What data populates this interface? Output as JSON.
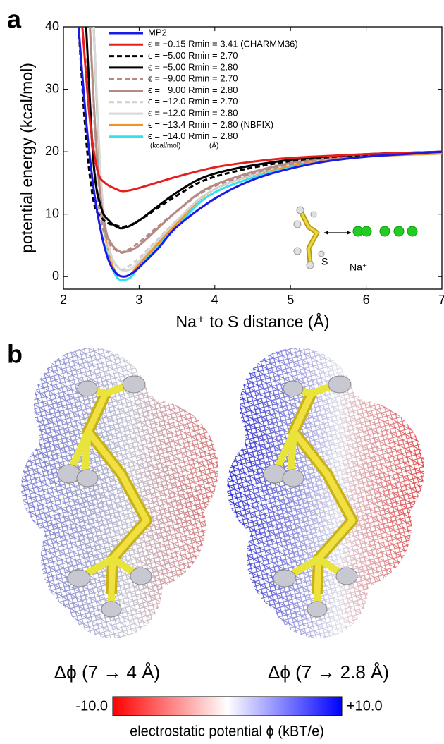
{
  "panel_labels": [
    "a",
    "b"
  ],
  "chart_data": {
    "type": "line",
    "x_label": "Na⁺ to S distance (Å)",
    "y_label": "potential energy (kcal/mol)",
    "xlim": [
      2,
      7
    ],
    "ylim": [
      -2,
      40
    ],
    "xticks": [
      2,
      3,
      4,
      5,
      6,
      7
    ],
    "yticks": [
      0,
      10,
      20,
      30,
      40
    ],
    "legend_units": [
      "(kcal/mol)",
      "(Å)"
    ],
    "annotations": [
      "S",
      "Na⁺"
    ],
    "series": [
      {
        "name": "MP2",
        "color": "#1a1ae6",
        "dashed": false,
        "x": [
          2.2,
          2.3,
          2.4,
          2.5,
          2.6,
          2.7,
          2.8,
          2.9,
          3.0,
          3.25,
          3.5,
          4,
          4.5,
          5,
          5.5,
          6,
          6.5,
          7
        ],
        "values": [
          40,
          25,
          14,
          7,
          2.5,
          0.5,
          0,
          0.5,
          1.5,
          4.5,
          8,
          12.5,
          15.5,
          17.3,
          18.5,
          19.2,
          19.6,
          20
        ]
      },
      {
        "name": "ϵ = −0.15  Rmin = 3.41 (CHARMM36)",
        "color": "#e61e1e",
        "dashed": false,
        "x": [
          2.25,
          2.35,
          2.45,
          2.55,
          2.7,
          2.8,
          3.0,
          3.5,
          4,
          4.5,
          5,
          6,
          7
        ],
        "values": [
          40,
          25,
          17,
          15,
          14,
          13.7,
          14.2,
          16,
          17.5,
          18.4,
          19,
          19.6,
          20
        ]
      },
      {
        "name": "ϵ = −5.00  Rmin = 2.70",
        "color": "#000000",
        "dashed": true,
        "x": [
          2.2,
          2.3,
          2.4,
          2.5,
          2.6,
          2.7,
          2.8,
          3.0,
          3.5,
          4,
          5,
          6,
          7
        ],
        "values": [
          40,
          22,
          12,
          9.5,
          8.5,
          8.2,
          8,
          9,
          13,
          16,
          18.5,
          19.5,
          20
        ]
      },
      {
        "name": "ϵ = −5.00  Rmin = 2.80",
        "color": "#000000",
        "dashed": false,
        "x": [
          2.3,
          2.4,
          2.5,
          2.6,
          2.7,
          2.8,
          3.0,
          3.5,
          4,
          5,
          6,
          7
        ],
        "values": [
          40,
          18,
          11,
          9,
          8,
          7.8,
          9,
          13.5,
          16.5,
          18.7,
          19.6,
          20
        ]
      },
      {
        "name": "ϵ = −9.00  Rmin = 2.70",
        "color": "#b58a85",
        "dashed": true,
        "x": [
          2.3,
          2.4,
          2.5,
          2.6,
          2.7,
          2.8,
          3.0,
          3.5,
          4,
          5,
          6,
          7
        ],
        "values": [
          35,
          18,
          9,
          5.5,
          4.2,
          4,
          5.5,
          10.5,
          14.5,
          18,
          19.3,
          20
        ]
      },
      {
        "name": "ϵ = −9.00  Rmin = 2.80",
        "color": "#b58a85",
        "dashed": false,
        "x": [
          2.35,
          2.45,
          2.55,
          2.65,
          2.75,
          2.8,
          3.0,
          3.5,
          4,
          5,
          6,
          7
        ],
        "values": [
          40,
          18,
          8,
          5,
          4,
          3.9,
          5,
          10.5,
          14.7,
          18.2,
          19.4,
          20
        ]
      },
      {
        "name": "ϵ = −12.0  Rmin = 2.70",
        "color": "#cfcfcf",
        "dashed": true,
        "x": [
          2.35,
          2.45,
          2.55,
          2.65,
          2.75,
          2.8,
          3.0,
          3.5,
          4,
          5,
          6,
          7
        ],
        "values": [
          40,
          15,
          6,
          2.5,
          1.3,
          1.2,
          3,
          9,
          14,
          18,
          19.4,
          20
        ]
      },
      {
        "name": "ϵ = −12.0  Rmin = 2.80",
        "color": "#d8d8d8",
        "dashed": false,
        "x": [
          2.4,
          2.5,
          2.6,
          2.7,
          2.8,
          2.9,
          3.0,
          3.5,
          4,
          5,
          6,
          7
        ],
        "values": [
          40,
          15,
          5,
          1.8,
          1,
          1.3,
          2.5,
          9,
          14,
          18,
          19.4,
          20
        ]
      },
      {
        "name": "ϵ = −13.4  Rmin = 2.80 (NBFIX)",
        "color": "#f39420",
        "dashed": false,
        "x": [
          2.4,
          2.5,
          2.6,
          2.7,
          2.8,
          2.9,
          3.0,
          3.5,
          4,
          5,
          6,
          7
        ],
        "values": [
          40,
          14,
          4,
          0.6,
          0,
          0.5,
          2,
          8.5,
          14,
          17.8,
          19.2,
          19.7
        ]
      },
      {
        "name": "ϵ = −14.0  Rmin = 2.80",
        "color": "#33e0f0",
        "dashed": false,
        "x": [
          2.4,
          2.5,
          2.6,
          2.7,
          2.8,
          2.9,
          3.0,
          3.5,
          4,
          5,
          6,
          7
        ],
        "values": [
          40,
          13,
          3.5,
          0,
          -0.5,
          0,
          1.5,
          8,
          13.5,
          17.5,
          19.2,
          19.8
        ]
      }
    ]
  },
  "panel_b": {
    "captions": [
      "Δϕ (7 → 4 Å)",
      "Δϕ (7 → 2.8 Å)"
    ],
    "colorbar": {
      "min_label": "-10.0",
      "max_label": "+10.0",
      "title": "electrostatic potential ϕ (kBT/e)"
    }
  }
}
